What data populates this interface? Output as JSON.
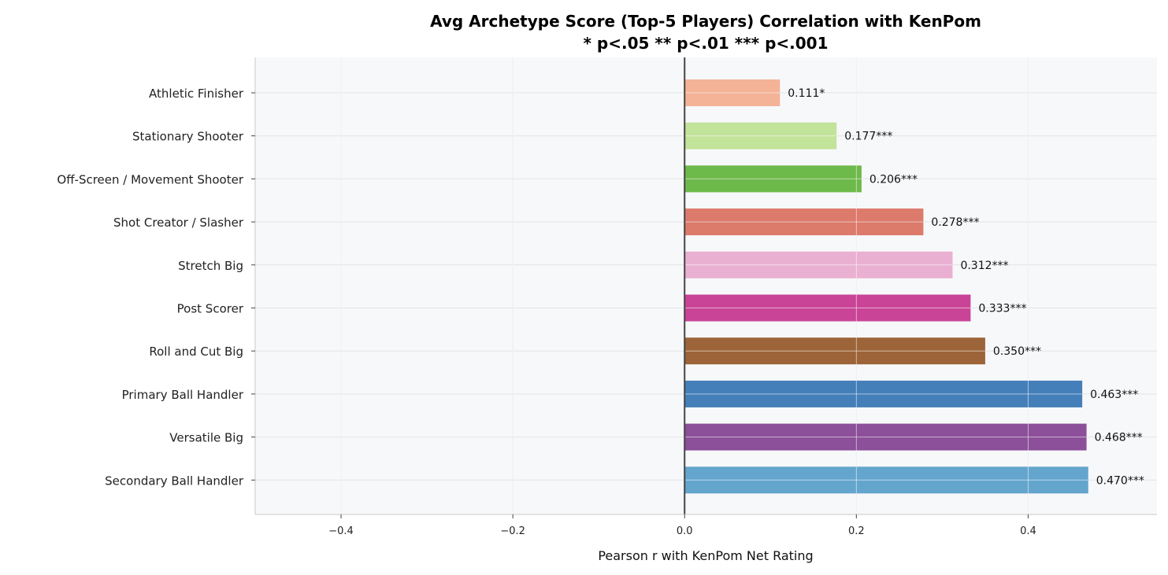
{
  "chart_data": {
    "type": "bar",
    "orientation": "horizontal",
    "title": "Avg Archetype Score (Top-5 Players) Correlation with KenPom",
    "subtitle": "* p<.05  ** p<.01  *** p<.001",
    "xlabel": "Pearson r with KenPom Net Rating",
    "ylabel": "",
    "xlim": [
      -0.5,
      0.55
    ],
    "xticks": [
      -0.4,
      -0.2,
      0.0,
      0.2,
      0.4
    ],
    "xtick_labels": [
      "−0.4",
      "−0.2",
      "0.0",
      "0.2",
      "0.4"
    ],
    "grid": true,
    "zero_line": true,
    "categories": [
      "Athletic Finisher",
      "Stationary Shooter",
      "Off-Screen / Movement Shooter",
      "Shot Creator / Slasher",
      "Stretch Big",
      "Post Scorer",
      "Roll and Cut Big",
      "Primary Ball Handler",
      "Versatile Big",
      "Secondary Ball Handler"
    ],
    "values": [
      0.111,
      0.177,
      0.206,
      0.278,
      0.312,
      0.333,
      0.35,
      0.463,
      0.468,
      0.47
    ],
    "value_labels": [
      "0.111*",
      "0.177***",
      "0.206***",
      "0.278***",
      "0.312***",
      "0.333***",
      "0.350***",
      "0.463***",
      "0.468***",
      "0.470***"
    ],
    "colors": [
      "#f4b297",
      "#c2e39a",
      "#6db94a",
      "#dc7a6c",
      "#eab0d1",
      "#c94496",
      "#9c6438",
      "#457fb9",
      "#8c4f99",
      "#64a5cd"
    ]
  }
}
